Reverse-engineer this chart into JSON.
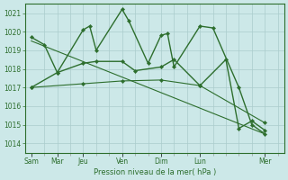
{
  "xlabel": "Pression niveau de la mer( hPa )",
  "bg_color": "#cce8e8",
  "grid_color": "#aacccc",
  "line_color": "#2d6e2d",
  "ylim": [
    1013.5,
    1021.5
  ],
  "yticks": [
    1014,
    1015,
    1016,
    1017,
    1018,
    1019,
    1020,
    1021
  ],
  "day_labels": [
    "Sam",
    "Mar",
    "Jeu",
    "Ven",
    "Dim",
    "Lun",
    "Mer"
  ],
  "day_x": [
    0,
    2,
    4,
    7,
    10,
    13,
    18
  ],
  "xlim": [
    -0.5,
    19.5
  ],
  "lines": [
    {
      "x": [
        0,
        1,
        2,
        4,
        4.5,
        5,
        7,
        7.5,
        9,
        10,
        10.5,
        11,
        13,
        14,
        16,
        17,
        18
      ],
      "y": [
        1019.7,
        1019.3,
        1017.8,
        1020.1,
        1020.3,
        1019.0,
        1021.2,
        1020.6,
        1018.3,
        1019.8,
        1019.9,
        1018.1,
        1020.3,
        1020.2,
        1017.0,
        1015.0,
        1014.5
      ],
      "marker": true,
      "lw": 1.0
    },
    {
      "x": [
        0,
        2,
        4,
        5,
        7,
        8,
        10,
        11,
        13,
        15,
        16,
        17,
        18
      ],
      "y": [
        1017.0,
        1017.8,
        1018.3,
        1018.4,
        1018.4,
        1017.9,
        1018.1,
        1018.5,
        1017.1,
        1018.5,
        1014.8,
        1015.2,
        1014.7
      ],
      "marker": true,
      "lw": 1.0
    },
    {
      "x": [
        0,
        4,
        7,
        10,
        13,
        18
      ],
      "y": [
        1017.0,
        1017.2,
        1017.35,
        1017.4,
        1017.1,
        1015.1
      ],
      "marker": true,
      "lw": 0.8
    },
    {
      "x": [
        0,
        18
      ],
      "y": [
        1019.5,
        1014.5
      ],
      "marker": false,
      "lw": 0.8
    }
  ]
}
